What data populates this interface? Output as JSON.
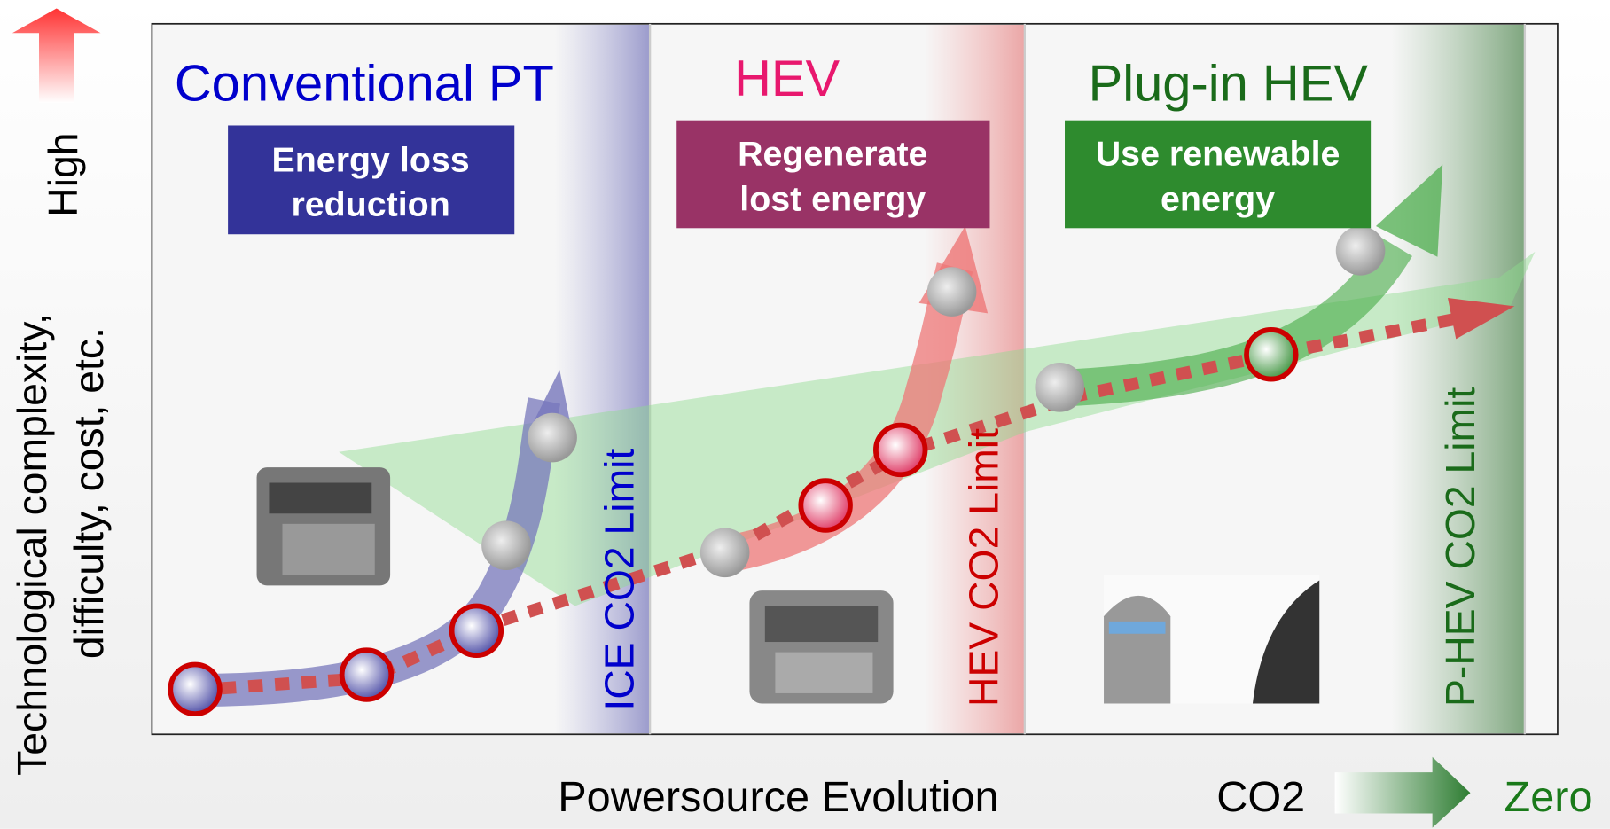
{
  "axis": {
    "y_label_lines": [
      "Technological complexity,",
      "difficulty, cost, etc."
    ],
    "y_high": "High",
    "x_label": "Powersource Evolution",
    "co2": "CO2",
    "zero": "Zero"
  },
  "sections": [
    {
      "title": "Conventional PT",
      "box_lines": [
        "Energy loss",
        "reduction"
      ],
      "limit": "ICE CO2 Limit"
    },
    {
      "title": "HEV",
      "box_lines": [
        "Regenerate",
        "lost energy"
      ],
      "limit": "HEV CO2 Limit"
    },
    {
      "title": "Plug-in HEV",
      "box_lines": [
        "Use renewable",
        "energy"
      ],
      "limit": "P-HEV CO2 Limit"
    }
  ]
}
